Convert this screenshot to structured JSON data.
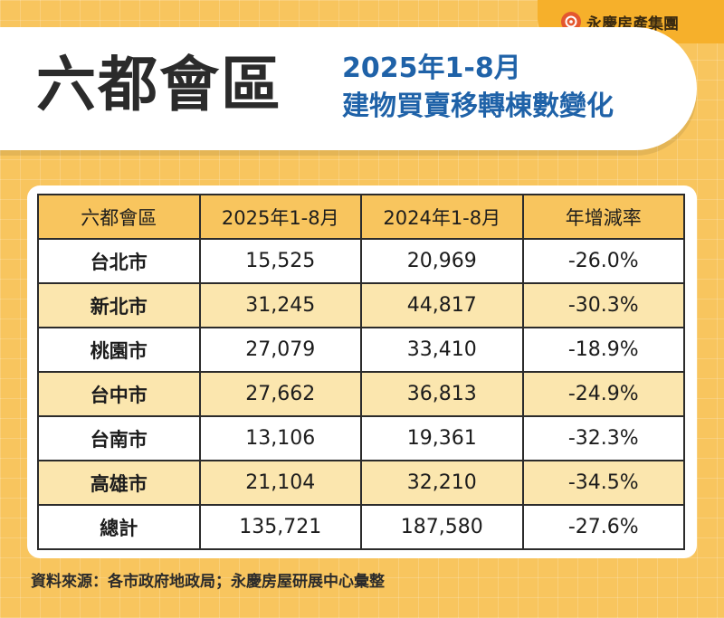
{
  "header": {
    "main_title": "六都會區",
    "subtitle_line1": "2025年1-8月",
    "subtitle_line2": "建物買賣移轉棟數變化"
  },
  "brand": {
    "logo_icon": "yongqing-logo-icon",
    "name": "永慶房產集團",
    "color": "#e4572e"
  },
  "colors": {
    "background": "#f8c55e",
    "title_blue": "#1f62a8",
    "row_highlight": "#fbe6ae"
  },
  "chart_data": {
    "type": "table",
    "columns": [
      "六都會區",
      "2025年1-8月",
      "2024年1-8月",
      "年增減率"
    ],
    "rows": [
      {
        "city": "台北市",
        "y2025": "15,525",
        "y2024": "20,969",
        "yoy": "-26.0%"
      },
      {
        "city": "新北市",
        "y2025": "31,245",
        "y2024": "44,817",
        "yoy": "-30.3%"
      },
      {
        "city": "桃園市",
        "y2025": "27,079",
        "y2024": "33,410",
        "yoy": "-18.9%"
      },
      {
        "city": "台中市",
        "y2025": "27,662",
        "y2024": "36,813",
        "yoy": "-24.9%"
      },
      {
        "city": "台南市",
        "y2025": "13,106",
        "y2024": "19,361",
        "yoy": "-32.3%"
      },
      {
        "city": "高雄市",
        "y2025": "21,104",
        "y2024": "32,210",
        "yoy": "-34.5%"
      },
      {
        "city": "總計",
        "y2025": "135,721",
        "y2024": "187,580",
        "yoy": "-27.6%"
      }
    ]
  },
  "footer": {
    "source": "資料來源：各市政府地政局；永慶房屋研展中心彙整"
  }
}
